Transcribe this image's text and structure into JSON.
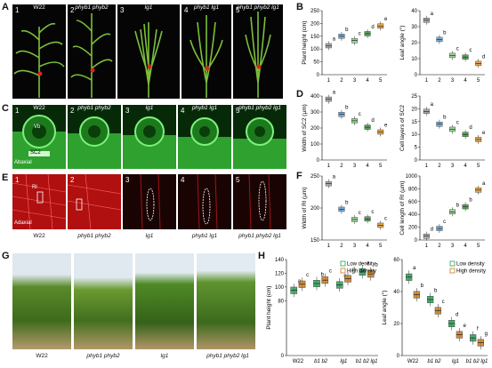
{
  "panel_letters": [
    "A",
    "B",
    "C",
    "D",
    "E",
    "F",
    "G",
    "H"
  ],
  "panelA": {
    "tiles": [
      {
        "num": "1",
        "label": "W22"
      },
      {
        "num": "2",
        "label": "phyb1 phyb2"
      },
      {
        "num": "3",
        "label": "lg1"
      },
      {
        "num": "4",
        "label": "phyb1 lg1"
      },
      {
        "num": "5",
        "label": "phyb1 phyb2 lg1"
      }
    ]
  },
  "panelC": {
    "tiles": [
      {
        "num": "1",
        "label": "W22"
      },
      {
        "num": "2",
        "label": "phyb1 phyb2"
      },
      {
        "num": "3",
        "label": "lg1"
      },
      {
        "num": "4",
        "label": "phyb1 lg1"
      },
      {
        "num": "5",
        "label": "phyb1 phyb2 lg1"
      }
    ],
    "annotations": {
      "vb": "Vb",
      "sc2": "SC2",
      "abaxial": "Abaxial"
    }
  },
  "panelE": {
    "tiles": [
      {
        "num": "1"
      },
      {
        "num": "2"
      },
      {
        "num": "3"
      },
      {
        "num": "4"
      },
      {
        "num": "5"
      }
    ],
    "annotations": {
      "rl": "Rl",
      "adaxial": "Adaxial"
    },
    "labels": [
      "W22",
      "phyb1 phyb2",
      "lg1",
      "phyb1 lg1",
      "phyb1 phyb2 lg1"
    ]
  },
  "panelG": {
    "labels": [
      "W22",
      "phyb1 phyb2",
      "lg1",
      "phyb1 phyb2 lg1"
    ]
  },
  "chart_data": [
    {
      "id": "B1",
      "type": "box",
      "ylabel": "Plant height (cm)",
      "categories": [
        "1",
        "2",
        "3",
        "4",
        "5"
      ],
      "ylim": [
        0,
        250
      ],
      "yticks": [
        0,
        50,
        100,
        150,
        200,
        250
      ],
      "values": [
        113,
        150,
        133,
        160,
        190
      ],
      "letters": [
        "a",
        "b",
        "c",
        "d",
        "e"
      ]
    },
    {
      "id": "B2",
      "type": "box",
      "ylabel": "Leaf angle (°)",
      "categories": [
        "1",
        "2",
        "3",
        "4",
        "5"
      ],
      "ylim": [
        0,
        40
      ],
      "yticks": [
        0,
        10,
        20,
        30,
        40
      ],
      "values": [
        34,
        22,
        12,
        11,
        7
      ],
      "letters": [
        "a",
        "b",
        "c",
        "c",
        "d"
      ]
    },
    {
      "id": "D1",
      "type": "box",
      "ylabel": "Width of SC2 (µm)",
      "categories": [
        "1",
        "2",
        "3",
        "4",
        "5"
      ],
      "ylim": [
        0,
        400
      ],
      "yticks": [
        0,
        100,
        200,
        300,
        400
      ],
      "values": [
        380,
        285,
        245,
        205,
        175
      ],
      "letters": [
        "a",
        "b",
        "c",
        "d",
        "e"
      ]
    },
    {
      "id": "D2",
      "type": "box",
      "ylabel": "Cell layers of SC2",
      "categories": [
        "1",
        "2",
        "3",
        "4",
        "5"
      ],
      "ylim": [
        0,
        25
      ],
      "yticks": [
        0,
        5,
        10,
        15,
        20,
        25
      ],
      "values": [
        19,
        14,
        12,
        10,
        8
      ],
      "letters": [
        "a",
        "b",
        "c",
        "d",
        "e"
      ]
    },
    {
      "id": "F1",
      "type": "box",
      "ylabel": "Width of Rl (µm)",
      "categories": [
        "1",
        "2",
        "3",
        "4",
        "5"
      ],
      "ylim": [
        150,
        250
      ],
      "yticks": [
        150,
        200,
        250
      ],
      "values": [
        238,
        198,
        182,
        183,
        173
      ],
      "letters": [
        "a",
        "b",
        "c",
        "c",
        "c"
      ]
    },
    {
      "id": "F2",
      "type": "box",
      "ylabel": "Cell length of Rl (µm)",
      "categories": [
        "1",
        "2",
        "3",
        "4",
        "5"
      ],
      "ylim": [
        0,
        1000
      ],
      "yticks": [
        0,
        200,
        400,
        600,
        800,
        1000
      ],
      "values": [
        60,
        180,
        440,
        520,
        780
      ],
      "letters": [
        "d",
        "c",
        "b",
        "b",
        "a"
      ]
    },
    {
      "id": "H1",
      "type": "box",
      "ylabel": "Plant height (cm)",
      "categories": [
        "W22",
        "b1 b2",
        "lg1",
        "b1 b2 lg1"
      ],
      "ylim": [
        0,
        140
      ],
      "yticks": [
        0,
        80,
        100,
        120,
        140
      ],
      "series": [
        {
          "name": "Low density",
          "values": [
            95,
            105,
            103,
            122
          ]
        },
        {
          "name": "High density",
          "values": [
            104,
            110,
            112,
            119
          ]
        }
      ],
      "letters": [
        [
          "a",
          "c"
        ],
        [
          "b",
          "c"
        ],
        [
          "c",
          "d"
        ],
        [
          "a",
          "b"
        ]
      ]
    },
    {
      "id": "H2",
      "type": "box",
      "ylabel": "Leaf angle (°)",
      "categories": [
        "W22",
        "b1 b2",
        "lg1",
        "b1 b2 lg1"
      ],
      "ylim": [
        0,
        60
      ],
      "yticks": [
        0,
        20,
        40,
        60
      ],
      "series": [
        {
          "name": "Low density",
          "values": [
            49,
            35,
            20,
            11
          ]
        },
        {
          "name": "High density",
          "values": [
            38,
            28,
            13,
            8
          ]
        }
      ],
      "letters": [
        [
          "a",
          "b"
        ],
        [
          "b",
          "c"
        ],
        [
          "d",
          "e"
        ],
        [
          "f",
          "g"
        ]
      ]
    }
  ],
  "legendH": [
    "Low density",
    "High density"
  ],
  "colors": {
    "low": "#2e9e57",
    "high": "#c87a1e",
    "boxes": [
      "#9e9e9e",
      "#5aa0d8",
      "#8ad08a",
      "#3c9a3c",
      "#e39a2f"
    ]
  }
}
